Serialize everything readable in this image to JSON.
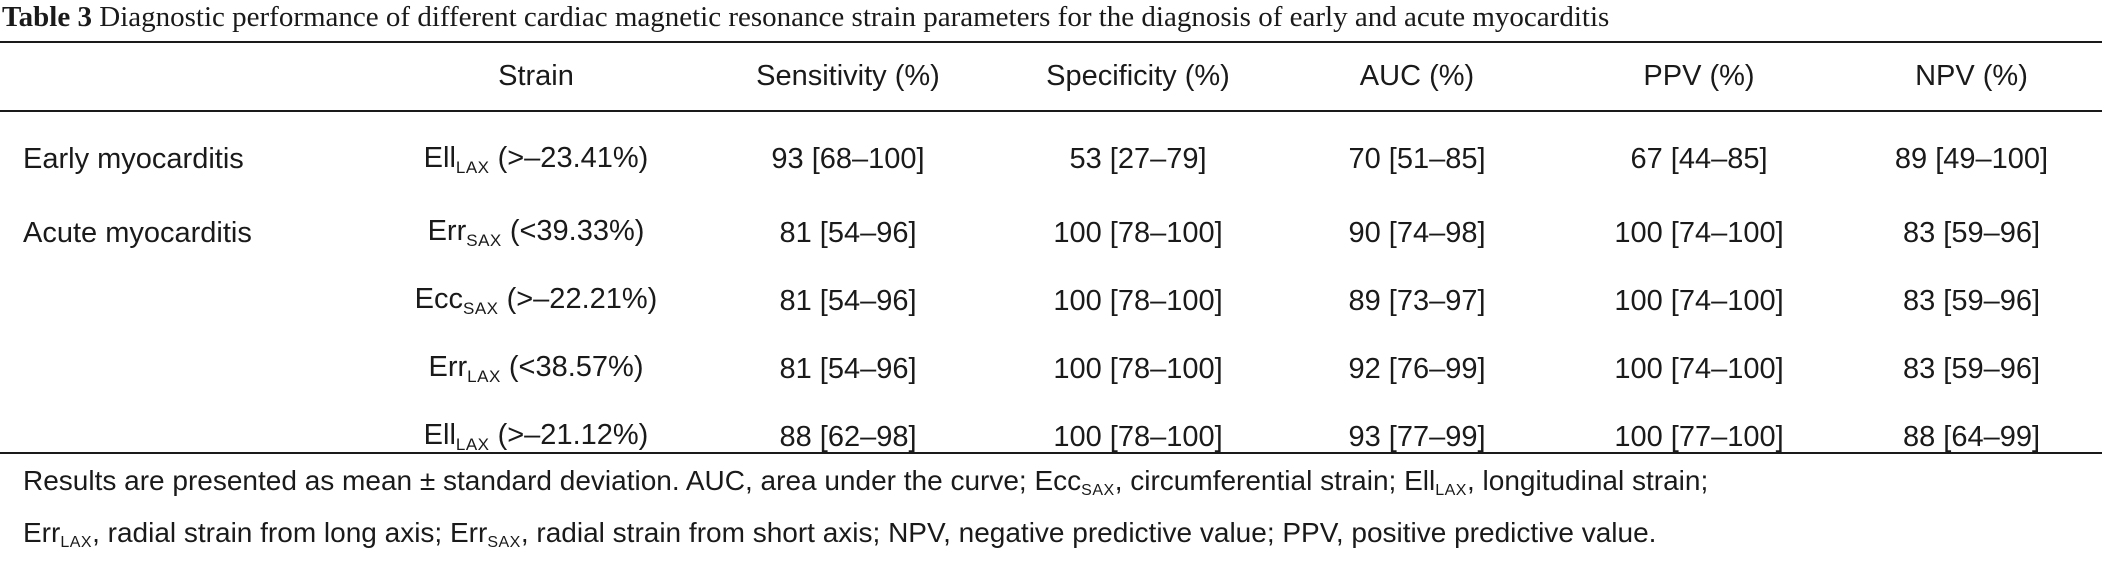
{
  "caption": {
    "label": "Table 3",
    "text": "Diagnostic performance of different cardiac magnetic resonance strain parameters for the diagnosis of early and acute myocarditis"
  },
  "table": {
    "headers": [
      "",
      "Strain",
      "Sensitivity (%)",
      "Specificity (%)",
      "AUC (%)",
      "PPV (%)",
      "NPV (%)"
    ],
    "rows": [
      {
        "group": "Early myocarditis",
        "strain": {
          "base": "Ell",
          "sub": "LAX",
          "cutoff": " (>–23.41%)"
        },
        "sensitivity": "93 [68–100]",
        "specificity": "53 [27–79]",
        "auc": "70 [51–85]",
        "ppv": "67 [44–85]",
        "npv": "89 [49–100]"
      },
      {
        "group": "Acute myocarditis",
        "strain": {
          "base": "Err",
          "sub": "SAX",
          "cutoff": " (<39.33%)"
        },
        "sensitivity": "81 [54–96]",
        "specificity": "100 [78–100]",
        "auc": "90 [74–98]",
        "ppv": "100 [74–100]",
        "npv": "83 [59–96]"
      },
      {
        "group": "",
        "strain": {
          "base": "Ecc",
          "sub": "SAX",
          "cutoff": " (>–22.21%)"
        },
        "sensitivity": "81 [54–96]",
        "specificity": "100 [78–100]",
        "auc": "89 [73–97]",
        "ppv": "100 [74–100]",
        "npv": "83 [59–96]"
      },
      {
        "group": "",
        "strain": {
          "base": "Err",
          "sub": "LAX",
          "cutoff": " (<38.57%)"
        },
        "sensitivity": "81 [54–96]",
        "specificity": "100 [78–100]",
        "auc": "92 [76–99]",
        "ppv": "100 [74–100]",
        "npv": "83 [59–96]"
      },
      {
        "group": "",
        "strain": {
          "base": "Ell",
          "sub": "LAX",
          "cutoff": " (>–21.12%)"
        },
        "sensitivity": "88 [62–98]",
        "specificity": "100 [78–100]",
        "auc": "93 [77–99]",
        "ppv": "100 [77–100]",
        "npv": "88 [64–99]"
      }
    ]
  },
  "footnote": {
    "line1_a": "Results are presented as mean ± standard deviation. AUC, area under the curve; Ecc",
    "line1_sub1": "SAX",
    "line1_b": ", circumferential strain; Ell",
    "line1_sub2": "LAX",
    "line1_c": ", longitudinal strain;",
    "line2_a": "Err",
    "line2_sub1": "LAX",
    "line2_b": ", radial strain from long axis; Err",
    "line2_sub2": "SAX",
    "line2_c": ", radial strain from short axis; NPV, negative predictive value; PPV, positive predictive value."
  }
}
